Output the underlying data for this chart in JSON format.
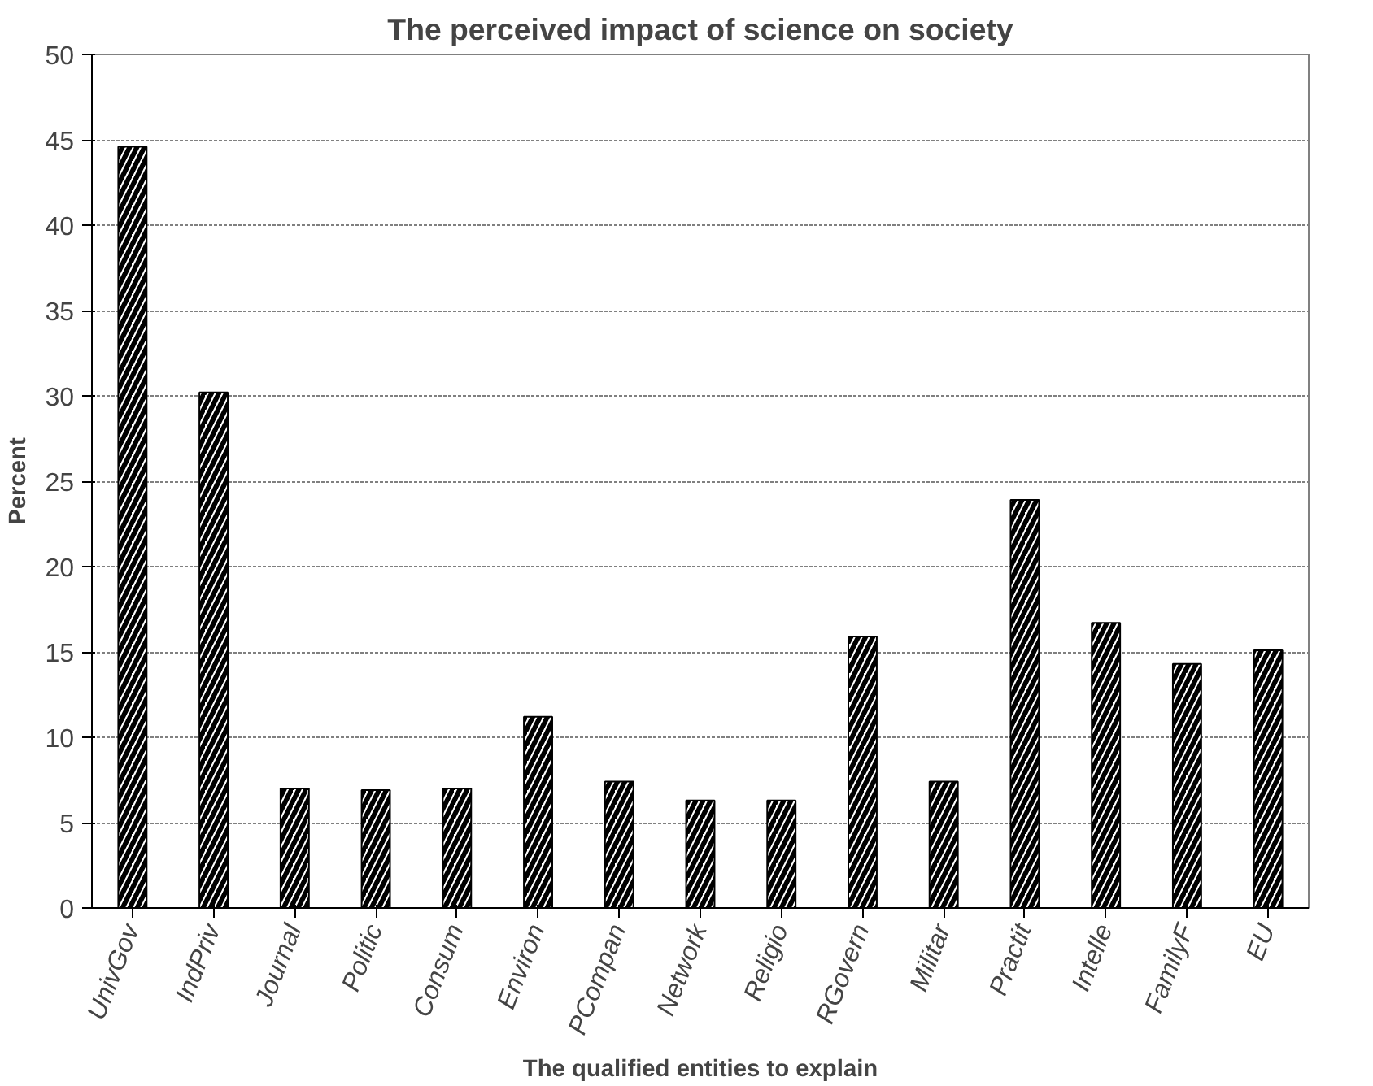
{
  "chart_data": {
    "type": "bar",
    "title": "The perceived impact of science on society",
    "xlabel": "The qualified entities to explain",
    "ylabel": "Percent",
    "categories": [
      "UnivGov",
      "IndPriv",
      "Journal",
      "Politic",
      "Consum",
      "Environ",
      "PCompan",
      "Network",
      "Religio",
      "RGovern",
      "Militar",
      "Practit",
      "Intelle",
      "FamilyF",
      "EU"
    ],
    "values": [
      44.6,
      30.2,
      7.0,
      6.9,
      7.0,
      11.2,
      7.4,
      6.3,
      6.3,
      15.9,
      7.4,
      23.9,
      16.7,
      14.3,
      15.1
    ],
    "color": "#000000",
    "ylim": [
      0,
      50
    ],
    "yticks": [
      0,
      5,
      10,
      15,
      20,
      25,
      30,
      35,
      40,
      45,
      50
    ],
    "grid": "y"
  }
}
